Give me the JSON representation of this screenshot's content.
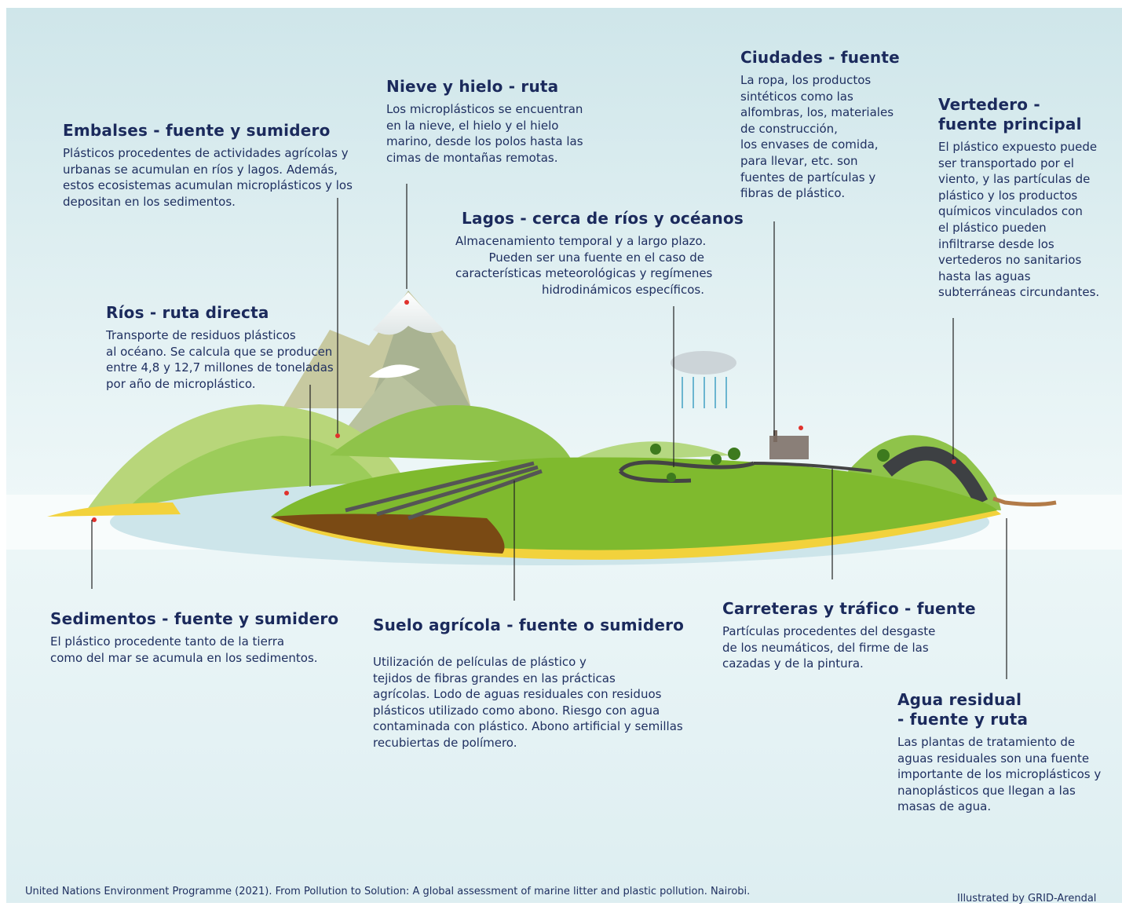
{
  "labels": [
    {
      "title": [
        "Embalses - fuente y sumidero"
      ],
      "body": [
        "Plásticos procedentes de actividades agrícolas y",
        "urbanas se acumulan en ríos y lagos. Además,",
        "estos ecosistemas acumulan microplásticos y los",
        "depositan en los sedimentos."
      ]
    },
    {
      "title": [
        "Nieve y hielo - ruta"
      ],
      "body": [
        "Los microplásticos se encuentran",
        "en la nieve, el hielo y el hielo",
        "marino, desde los polos hasta las",
        "cimas de montañas remotas."
      ]
    },
    {
      "title": [
        "Ciudades - fuente"
      ],
      "body": [
        "La ropa, los productos",
        "sintéticos como las",
        "alfombras, los, materiales",
        "de construcción,",
        "los envases de comida,",
        "para llevar, etc. son",
        "fuentes de partículas y",
        "fibras de plástico."
      ]
    },
    {
      "title": [
        "Vertedero -",
        "fuente principal"
      ],
      "body": [
        "El plástico expuesto puede",
        "ser transportado por el",
        "viento, y las partículas de",
        "plástico y los productos",
        "químicos vinculados con",
        "el plástico pueden",
        "infiltrarse desde los",
        "vertederos no sanitarios",
        "hasta las aguas",
        "subterráneas circundantes."
      ]
    },
    {
      "title": [
        "Lagos - cerca de ríos y océanos"
      ],
      "body": [
        "Almacenamiento temporal y a largo plazo.",
        "Pueden ser una fuente en el caso de",
        "características meteorológicas y regímenes",
        "hidrodinámicos específicos."
      ]
    },
    {
      "title": [
        "Ríos - ruta directa"
      ],
      "body": [
        "Transporte de residuos plásticos",
        "al océano. Se calcula que se producen",
        "entre 4,8 y 12,7 millones de toneladas",
        "por año de microplástico."
      ]
    },
    {
      "title": [
        "Sedimentos - fuente y sumidero"
      ],
      "body": [
        "El plástico procedente tanto de la tierra",
        "como del mar se acumula en los sedimentos."
      ]
    },
    {
      "title": [
        "Suelo agrícola - fuente o sumidero"
      ],
      "body": [
        "Utilización de películas de plástico y",
        "tejidos de fibras grandes en las prácticas",
        "agrícolas. Lodo de aguas residuales con residuos",
        "plásticos utilizado como abono. Riesgo con agua",
        "contaminada con plástico. Abono artificial y semillas",
        "recubiertas de polímero."
      ]
    },
    {
      "title": [
        "Carreteras y tráfico - fuente"
      ],
      "body": [
        "Partículas procedentes del desgaste",
        "de los neumáticos, del firme de las",
        "cazadas y de la pintura."
      ]
    },
    {
      "title": [
        "Agua residual",
        "- fuente y ruta"
      ],
      "body": [
        "Las plantas de tratamiento de",
        "aguas residuales son una fuente",
        "importante de los microplásticos y",
        "nanoplásticos que llegan a las",
        "masas de agua."
      ]
    }
  ],
  "footer": {
    "credit": "United Nations Environment Programme (2021). From Pollution to Solution: A global assessment of marine litter and plastic pollution. Nairobi.",
    "illustrator": "Illustrated by GRID-Arendal"
  }
}
